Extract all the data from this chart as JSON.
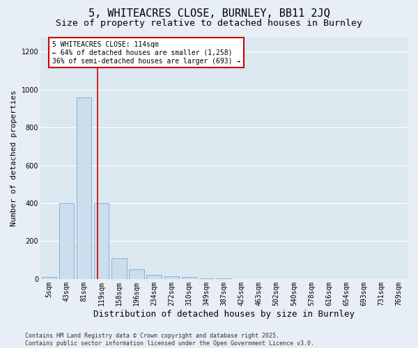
{
  "title": "5, WHITEACRES CLOSE, BURNLEY, BB11 2JQ",
  "subtitle": "Size of property relative to detached houses in Burnley",
  "xlabel": "Distribution of detached houses by size in Burnley",
  "ylabel": "Number of detached properties",
  "categories": [
    "5sqm",
    "43sqm",
    "81sqm",
    "119sqm",
    "158sqm",
    "196sqm",
    "234sqm",
    "272sqm",
    "310sqm",
    "349sqm",
    "387sqm",
    "425sqm",
    "463sqm",
    "502sqm",
    "540sqm",
    "578sqm",
    "616sqm",
    "654sqm",
    "693sqm",
    "731sqm",
    "769sqm"
  ],
  "bar_heights": [
    10,
    400,
    960,
    400,
    110,
    50,
    20,
    15,
    10,
    5,
    5,
    0,
    0,
    0,
    0,
    0,
    0,
    0,
    0,
    0,
    0
  ],
  "bar_color": "#ccdded",
  "bar_edge_color": "#7aaac8",
  "ylim": [
    0,
    1280
  ],
  "yticks": [
    0,
    200,
    400,
    600,
    800,
    1000,
    1200
  ],
  "property_line_x": 2.78,
  "property_line_color": "#cc0000",
  "annotation_text": "5 WHITEACRES CLOSE: 114sqm\n← 64% of detached houses are smaller (1,258)\n36% of semi-detached houses are larger (693) →",
  "annotation_box_color": "#cc0000",
  "fig_background_color": "#e8eef5",
  "plot_background_color": "#dce8f0",
  "grid_color": "#ffffff",
  "footnote": "Contains HM Land Registry data © Crown copyright and database right 2025.\nContains public sector information licensed under the Open Government Licence v3.0.",
  "title_fontsize": 11,
  "subtitle_fontsize": 9.5,
  "xlabel_fontsize": 9,
  "ylabel_fontsize": 8,
  "tick_fontsize": 7,
  "annotation_fontsize": 7,
  "footnote_fontsize": 6
}
